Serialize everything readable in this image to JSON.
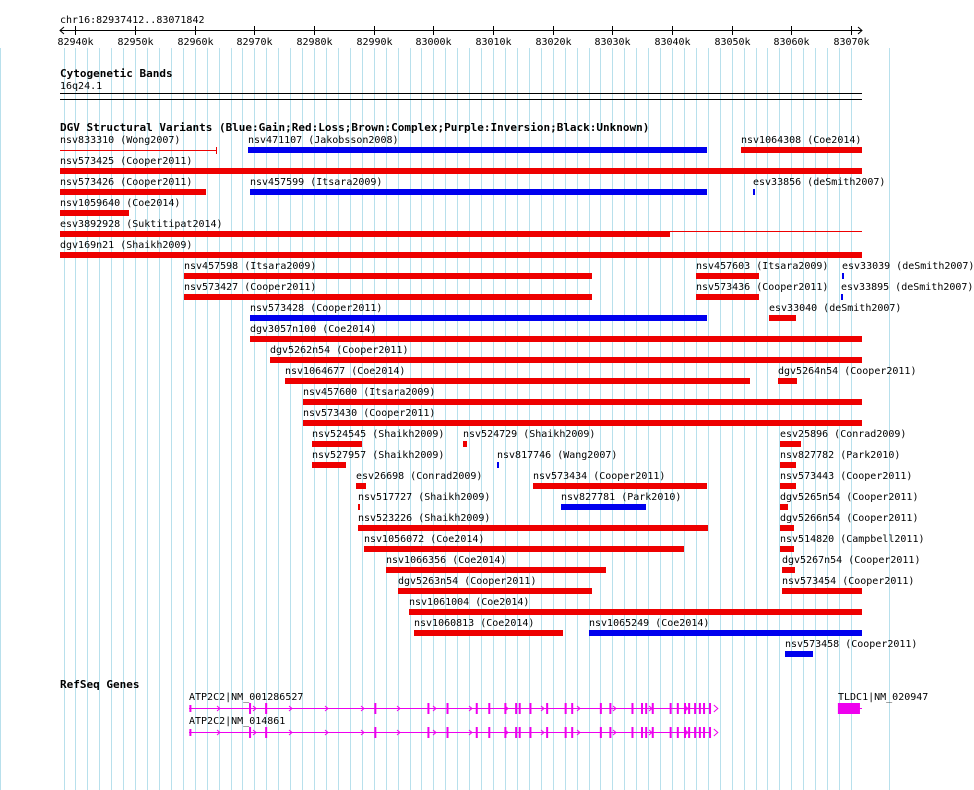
{
  "locus": "chr16:82937412..83071842",
  "ruler": {
    "start": 82937412,
    "end": 83071842,
    "ticks": [
      {
        "pos": 82940000,
        "label": "82940k"
      },
      {
        "pos": 82950000,
        "label": "82950k"
      },
      {
        "pos": 82960000,
        "label": "82960k"
      },
      {
        "pos": 82970000,
        "label": "82970k"
      },
      {
        "pos": 82980000,
        "label": "82980k"
      },
      {
        "pos": 82990000,
        "label": "82990k"
      },
      {
        "pos": 83000000,
        "label": "83000k"
      },
      {
        "pos": 83010000,
        "label": "83010k"
      },
      {
        "pos": 83020000,
        "label": "83020k"
      },
      {
        "pos": 83030000,
        "label": "83030k"
      },
      {
        "pos": 83040000,
        "label": "83040k"
      },
      {
        "pos": 83050000,
        "label": "83050k"
      },
      {
        "pos": 83060000,
        "label": "83060k"
      },
      {
        "pos": 83070000,
        "label": "83070k"
      }
    ]
  },
  "tracks": {
    "cytoband": {
      "title": "Cytogenetic Bands",
      "band": "16q24.1"
    },
    "dgv": {
      "title": "DGV Structural Variants (Blue:Gain;Red:Loss;Brown:Complex;Purple:Inversion;Black:Unknown)"
    },
    "refseq": {
      "title": "RefSeq Genes"
    }
  },
  "colors": {
    "gain": "#0000ee",
    "loss": "#ee0000",
    "gene": "#ee00ee",
    "grid": "#b8e0ec"
  },
  "variants": [
    {
      "label": "nsv833310 (Wong2007)",
      "type": "loss",
      "thin": true,
      "start": 82937412,
      "end": 82963600,
      "row": 0,
      "end_tick": true
    },
    {
      "label": "nsv471107 (Jakobsson2008)",
      "type": "gain",
      "start": 82969000,
      "end": 83045900,
      "row": 0
    },
    {
      "label": "nsv1064308 (Coe2014)",
      "type": "loss",
      "start": 83051600,
      "end": 83071842,
      "row": 0
    },
    {
      "label": "nsv573425 (Cooper2011)",
      "type": "loss",
      "start": 82937412,
      "end": 83071842,
      "row": 1
    },
    {
      "label": "nsv573426 (Cooper2011)",
      "type": "loss",
      "start": 82937412,
      "end": 82961900,
      "row": 2
    },
    {
      "label": "nsv457599 (Itsara2009)",
      "type": "gain",
      "start": 82969300,
      "end": 83045900,
      "row": 2
    },
    {
      "label": "esv33856 (deSmith2007)",
      "type": "gain",
      "start": 83053600,
      "end": 83054000,
      "row": 2
    },
    {
      "label": "nsv1059640 (Coe2014)",
      "type": "loss",
      "start": 82937412,
      "end": 82949000,
      "row": 3
    },
    {
      "label": "esv3892928 (Suktitipat2014)",
      "type": "loss",
      "start": 82937412,
      "end": 83039600,
      "row": 4,
      "tail_end": 83071842
    },
    {
      "label": "dgv169n21 (Shaikh2009)",
      "type": "loss",
      "start": 82937412,
      "end": 83071842,
      "row": 5
    },
    {
      "label": "nsv457598 (Itsara2009)",
      "type": "loss",
      "start": 82958200,
      "end": 83026600,
      "row": 6
    },
    {
      "label": "nsv457603 (Itsara2009)",
      "type": "loss",
      "start": 83044100,
      "end": 83054700,
      "row": 6
    },
    {
      "label": "esv33039 (deSmith2007)",
      "type": "gain",
      "start": 83068500,
      "end": 83068800,
      "row": 6
    },
    {
      "label": "nsv573427 (Cooper2011)",
      "type": "loss",
      "start": 82958200,
      "end": 83026600,
      "row": 7
    },
    {
      "label": "nsv573436 (Cooper2011)",
      "type": "loss",
      "start": 83044100,
      "end": 83054700,
      "row": 7
    },
    {
      "label": "esv33895 (deSmith2007)",
      "type": "gain",
      "start": 83068300,
      "end": 83068600,
      "row": 7
    },
    {
      "label": "nsv573428 (Cooper2011)",
      "type": "gain",
      "start": 82969300,
      "end": 83045900,
      "row": 8
    },
    {
      "label": "esv33040 (deSmith2007)",
      "type": "loss",
      "start": 83056300,
      "end": 83060800,
      "row": 8
    },
    {
      "label": "dgv3057n100 (Coe2014)",
      "type": "loss",
      "start": 82969300,
      "end": 83071842,
      "row": 9
    },
    {
      "label": "dgv5262n54 (Cooper2011)",
      "type": "loss",
      "start": 82972600,
      "end": 83071842,
      "row": 10
    },
    {
      "label": "nsv1064677 (Coe2014)",
      "type": "loss",
      "start": 82975200,
      "end": 83053100,
      "row": 11
    },
    {
      "label": "dgv5264n54 (Cooper2011)",
      "type": "loss",
      "start": 83057800,
      "end": 83061000,
      "row": 11
    },
    {
      "label": "nsv457600 (Itsara2009)",
      "type": "loss",
      "start": 82978200,
      "end": 83071842,
      "row": 12
    },
    {
      "label": "nsv573430 (Cooper2011)",
      "type": "loss",
      "start": 82978200,
      "end": 83071842,
      "row": 13
    },
    {
      "label": "nsv524545 (Shaikh2009)",
      "type": "loss",
      "start": 82979700,
      "end": 82988000,
      "row": 14
    },
    {
      "label": "nsv524729 (Shaikh2009)",
      "type": "loss",
      "start": 83005000,
      "end": 83005700,
      "row": 14
    },
    {
      "label": "esv25896 (Conrad2009)",
      "type": "loss",
      "start": 83058100,
      "end": 83061600,
      "row": 14
    },
    {
      "label": "nsv527957 (Shaikh2009)",
      "type": "loss",
      "start": 82979700,
      "end": 82985400,
      "row": 15
    },
    {
      "label": "nsv817746 (Wang2007)",
      "type": "gain",
      "start": 83010600,
      "end": 83011000,
      "row": 15
    },
    {
      "label": "nsv827782 (Park2010)",
      "type": "loss",
      "start": 83058100,
      "end": 83060800,
      "row": 15
    },
    {
      "label": "esv26698 (Conrad2009)",
      "type": "loss",
      "start": 82987000,
      "end": 82988700,
      "row": 16
    },
    {
      "label": "nsv573434 (Cooper2011)",
      "type": "loss",
      "start": 83016700,
      "end": 83045900,
      "row": 16
    },
    {
      "label": "nsv573443 (Cooper2011)",
      "type": "loss",
      "start": 83058100,
      "end": 83060800,
      "row": 16
    },
    {
      "label": "nsv517727 (Shaikh2009)",
      "type": "loss",
      "start": 82987300,
      "end": 82987700,
      "row": 17
    },
    {
      "label": "nsv827781 (Park2010)",
      "type": "gain",
      "start": 83021400,
      "end": 83035600,
      "row": 17
    },
    {
      "label": "dgv5265n54 (Cooper2011)",
      "type": "loss",
      "start": 83058100,
      "end": 83059400,
      "row": 17
    },
    {
      "label": "nsv523226 (Shaikh2009)",
      "type": "loss",
      "start": 82987300,
      "end": 83045900,
      "row": 18
    },
    {
      "label": "dgv5266n54 (Cooper2011)",
      "type": "loss",
      "start": 83058100,
      "end": 83060500,
      "row": 18
    },
    {
      "label": "nsv1056072 (Coe2014)",
      "type": "loss",
      "start": 82988400,
      "end": 83042100,
      "row": 19
    },
    {
      "label": "nsv514820 (Campbell2011)",
      "type": "loss",
      "start": 83058100,
      "end": 83060500,
      "row": 19
    },
    {
      "label": "nsv1066356 (Coe2014)",
      "type": "loss",
      "start": 82992000,
      "end": 83028900,
      "row": 20
    },
    {
      "label": "dgv5267n54 (Cooper2011)",
      "type": "loss",
      "start": 83058400,
      "end": 83060500,
      "row": 20
    },
    {
      "label": "dgv5263n54 (Cooper2011)",
      "type": "loss",
      "start": 82994000,
      "end": 83026600,
      "row": 21
    },
    {
      "label": "nsv573454 (Cooper2011)",
      "type": "loss",
      "start": 83058400,
      "end": 83071842,
      "row": 21
    },
    {
      "label": "nsv1061004 (Coe2014)",
      "type": "loss",
      "start": 82995900,
      "end": 83071842,
      "row": 22
    },
    {
      "label": "nsv1060813 (Coe2014)",
      "type": "loss",
      "start": 82996700,
      "end": 83021700,
      "row": 23
    },
    {
      "label": "nsv1065249 (Coe2014)",
      "type": "gain",
      "start": 83026000,
      "end": 83071842,
      "row": 23
    },
    {
      "label": "nsv573458 (Cooper2011)",
      "type": "gain",
      "start": 83058900,
      "end": 83063600,
      "row": 24
    }
  ],
  "genes": [
    {
      "label": "ATP2C2|NM_001286527",
      "start": 82959100,
      "end": 83046500,
      "cds_start": 82969300,
      "cds_end": 83046500,
      "exons": [
        [
          82959100,
          82959400
        ],
        [
          82969100,
          82969400
        ],
        [
          82971800,
          82972100
        ],
        [
          82990100,
          82990400
        ],
        [
          82999000,
          82999300
        ],
        [
          83002200,
          83002500
        ],
        [
          83007100,
          83007400
        ],
        [
          83009200,
          83009500
        ],
        [
          83011900,
          83012200
        ],
        [
          83013700,
          83014000
        ],
        [
          83014300,
          83014600
        ],
        [
          83016100,
          83016400
        ],
        [
          83018900,
          83019200
        ],
        [
          83022000,
          83022300
        ],
        [
          83023100,
          83023400
        ],
        [
          83027900,
          83028200
        ],
        [
          83029500,
          83029800
        ],
        [
          83033200,
          83033500
        ],
        [
          83034800,
          83035100
        ],
        [
          83035500,
          83035800
        ],
        [
          83036600,
          83036900
        ],
        [
          83039600,
          83039900
        ],
        [
          83040800,
          83041100
        ],
        [
          83042000,
          83042300
        ],
        [
          83042700,
          83043000
        ],
        [
          83043700,
          83044000
        ],
        [
          83044500,
          83044800
        ],
        [
          83045200,
          83045500
        ],
        [
          83046200,
          83046500
        ]
      ],
      "strand": "+",
      "row": 0
    },
    {
      "label": "ATP2C2|NM_014861",
      "start": 82959100,
      "end": 83046500,
      "cds_start": 82969300,
      "cds_end": 83046500,
      "exons": [
        [
          82959100,
          82959400
        ],
        [
          82969100,
          82969400
        ],
        [
          82971800,
          82972100
        ],
        [
          82990100,
          82990400
        ],
        [
          82999000,
          82999300
        ],
        [
          83002200,
          83002500
        ],
        [
          83007100,
          83007400
        ],
        [
          83009200,
          83009500
        ],
        [
          83011900,
          83012200
        ],
        [
          83013700,
          83014000
        ],
        [
          83014300,
          83014600
        ],
        [
          83016100,
          83016400
        ],
        [
          83018900,
          83019200
        ],
        [
          83022000,
          83022300
        ],
        [
          83023100,
          83023400
        ],
        [
          83027900,
          83028200
        ],
        [
          83029500,
          83029800
        ],
        [
          83033200,
          83033500
        ],
        [
          83034800,
          83035100
        ],
        [
          83035500,
          83035800
        ],
        [
          83036600,
          83036900
        ],
        [
          83039600,
          83039900
        ],
        [
          83040800,
          83041100
        ],
        [
          83042000,
          83042300
        ],
        [
          83042700,
          83043000
        ],
        [
          83043700,
          83044000
        ],
        [
          83044500,
          83044800
        ],
        [
          83045200,
          83045500
        ],
        [
          83046200,
          83046500
        ]
      ],
      "strand": "+",
      "row": 1
    },
    {
      "label": "TLDC1|NM_020947",
      "start": 83067800,
      "end": 83071842,
      "cds_start": 83067800,
      "cds_end": 83071842,
      "exons": [
        [
          83067800,
          83071500
        ]
      ],
      "strand": "-",
      "row": 0
    }
  ]
}
